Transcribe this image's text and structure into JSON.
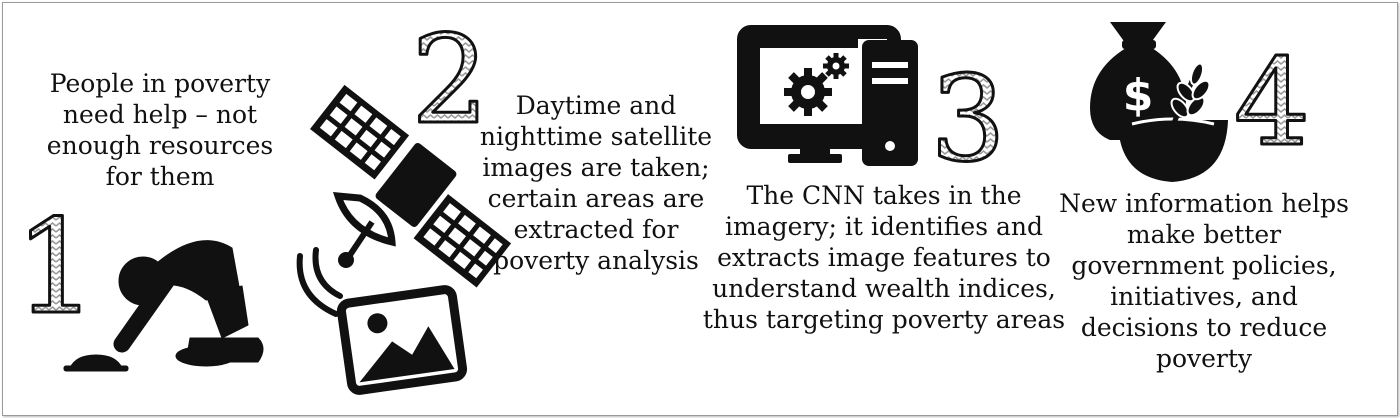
{
  "steps": [
    {
      "number": "1",
      "text": "People in poverty need help – not enough resources for them",
      "icon": "kneeling-person-icon"
    },
    {
      "number": "2",
      "text": "Daytime and nighttime satellite images are taken; certain areas are extracted for poverty analysis",
      "icon": "satellite-icon"
    },
    {
      "number": "3",
      "text": "The CNN takes in the imagery; it identifies and extracts image features to understand wealth indices, thus targeting poverty areas",
      "icon": "computer-icon"
    },
    {
      "number": "4",
      "text": "New information helps make better government policies, initiatives, and decisions to reduce poverty",
      "icon": "money-bag-food-bowl-icon"
    }
  ],
  "colors": {
    "ink": "#111111",
    "numeral_pattern": "#9a9a9a",
    "frame": "#9a9a9a"
  }
}
